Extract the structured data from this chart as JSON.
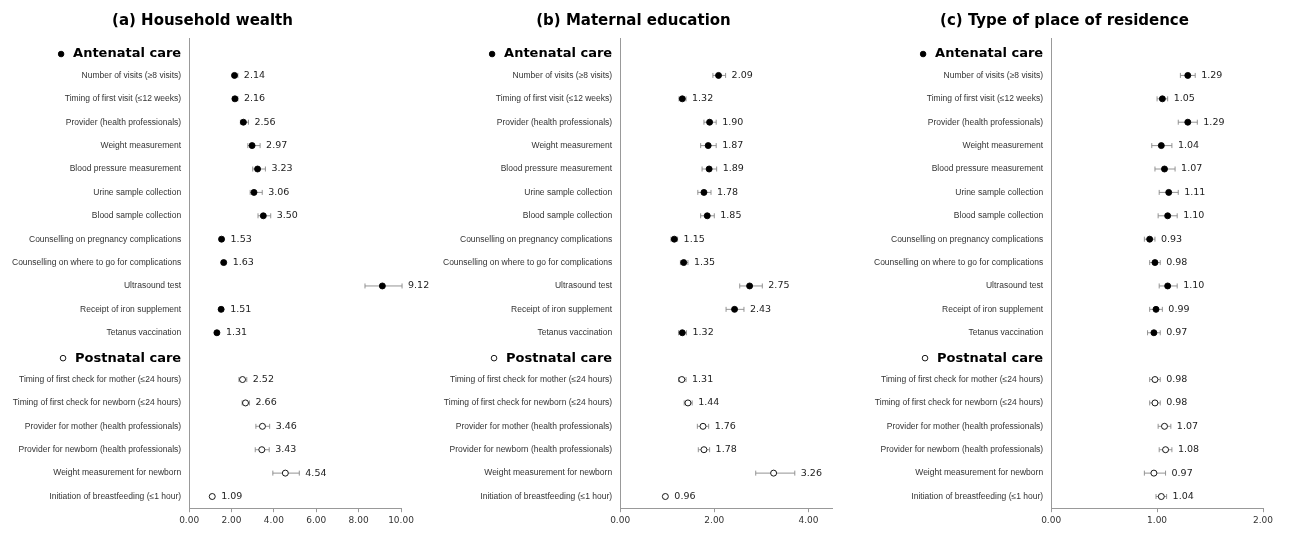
{
  "chart_data": [
    {
      "type": "scatter",
      "orientation": "horizontal",
      "title": "(a) Household wealth",
      "marker": "circle",
      "legend": "left",
      "categories": [
        null,
        "Number of visits (≥8 visits)",
        "Timing of first visit (≤12 weeks)",
        "Provider (health professionals)",
        "Weight measurement",
        "Blood pressure measurement",
        "Urine sample collection",
        "Blood sample collection",
        "Counselling on pregnancy complications",
        "Counselling on where to go for complications",
        "Ultrasound test",
        "Receipt of iron supplement",
        "Tetanus vaccination",
        null,
        "Timing of first check for mother (≤24 hours)",
        "Timing of first check for newborn (≤24 hours)",
        "Provider for mother (health professionals)",
        "Provider for newborn (health professionals)",
        "Weight measurement for newborn",
        "Initiation of breastfeeding (≤1 hour)"
      ],
      "xlim": [
        0,
        10
      ],
      "xticks": [
        {
          "value": 0,
          "label": "0.00"
        },
        {
          "value": 2,
          "label": "2.00"
        },
        {
          "value": 4,
          "label": "4.00"
        },
        {
          "value": 6,
          "label": "6.00"
        },
        {
          "value": 8,
          "label": "8.00"
        },
        {
          "value": 10,
          "label": "10.00"
        }
      ],
      "series": [
        {
          "name": "Antenatal care",
          "color": "#000000",
          "values": [
            null,
            2.14,
            2.16,
            2.56,
            2.97,
            3.23,
            3.06,
            3.5,
            1.53,
            1.63,
            9.12,
            1.51,
            1.31,
            null,
            null,
            null,
            null,
            null,
            null,
            null
          ],
          "errors": [
            null,
            [
              2.05,
              2.3
            ],
            [
              2.06,
              2.3
            ],
            [
              2.42,
              2.8
            ],
            [
              2.77,
              3.35
            ],
            [
              3.0,
              3.6
            ],
            [
              2.88,
              3.45
            ],
            [
              3.25,
              3.85
            ],
            [
              1.45,
              1.62
            ],
            [
              1.53,
              1.73
            ],
            [
              8.3,
              10.05
            ],
            [
              1.43,
              1.6
            ],
            [
              1.24,
              1.39
            ],
            null,
            null,
            null,
            null,
            null,
            null,
            null
          ],
          "value_labels": [
            null,
            "2.14",
            "2.16",
            "2.56",
            "2.97",
            "3.23",
            "3.06",
            "3.50",
            "1.53",
            "1.63",
            "9.12",
            "1.51",
            "1.31",
            null,
            null,
            null,
            null,
            null,
            null,
            null
          ]
        },
        {
          "name": "Postnatal care",
          "color": "#000000",
          "values": [
            null,
            null,
            null,
            null,
            null,
            null,
            null,
            null,
            null,
            null,
            null,
            null,
            null,
            null,
            2.52,
            2.66,
            3.46,
            3.43,
            4.54,
            1.09
          ],
          "errors": [
            null,
            null,
            null,
            null,
            null,
            null,
            null,
            null,
            null,
            null,
            null,
            null,
            null,
            null,
            [
              2.35,
              2.72
            ],
            [
              2.5,
              2.85
            ],
            [
              3.15,
              3.8
            ],
            [
              3.12,
              3.78
            ],
            [
              3.95,
              5.2
            ],
            null
          ],
          "value_labels": [
            null,
            null,
            null,
            null,
            null,
            null,
            null,
            null,
            null,
            null,
            null,
            null,
            null,
            null,
            "2.52",
            "2.66",
            "3.46",
            "3.43",
            "4.54",
            "1.09"
          ]
        }
      ]
    },
    {
      "type": "scatter",
      "orientation": "horizontal",
      "title": "(b) Maternal education",
      "marker": "circle",
      "legend": "left",
      "categories": [
        null,
        "Number of visits (≥8 visits)",
        "Timing of first visit (≤12 weeks)",
        "Provider (health professionals)",
        "Weight measurement",
        "Blood pressure measurement",
        "Urine sample collection",
        "Blood sample collection",
        "Counselling on pregnancy complications",
        "Counselling on where to go for complications",
        "Ultrasound test",
        "Receipt of iron supplement",
        "Tetanus vaccination",
        null,
        "Timing of first check for mother (≤24 hours)",
        "Timing of first check for newborn (≤24 hours)",
        "Provider for mother (health professionals)",
        "Provider for newborn (health professionals)",
        "Weight measurement for newborn",
        "Initiation of breastfeeding (≤1 hour)"
      ],
      "xlim": [
        0,
        4.5
      ],
      "xticks": [
        {
          "value": 0,
          "label": "0.00"
        },
        {
          "value": 2,
          "label": "2.00"
        },
        {
          "value": 4,
          "label": "4.00"
        }
      ],
      "series": [
        {
          "name": "Antenatal care",
          "color": "#000000",
          "values": [
            null,
            2.09,
            1.32,
            1.9,
            1.87,
            1.89,
            1.78,
            1.85,
            1.15,
            1.35,
            2.75,
            2.43,
            1.32,
            null,
            null,
            null,
            null,
            null,
            null,
            null
          ],
          "errors": [
            null,
            [
              1.97,
              2.24
            ],
            [
              1.25,
              1.4
            ],
            [
              1.78,
              2.04
            ],
            [
              1.71,
              2.04
            ],
            [
              1.74,
              2.05
            ],
            [
              1.65,
              1.93
            ],
            [
              1.71,
              2.0
            ],
            [
              1.08,
              1.22
            ],
            [
              1.28,
              1.44
            ],
            [
              2.54,
              3.02
            ],
            [
              2.25,
              2.63
            ],
            [
              1.24,
              1.41
            ],
            null,
            null,
            null,
            null,
            null,
            null,
            null
          ],
          "value_labels": [
            null,
            "2.09",
            "1.32",
            "1.90",
            "1.87",
            "1.89",
            "1.78",
            "1.85",
            "1.15",
            "1.35",
            "2.75",
            "2.43",
            "1.32",
            null,
            null,
            null,
            null,
            null,
            null,
            null
          ]
        },
        {
          "name": "Postnatal care",
          "color": "#000000",
          "values": [
            null,
            null,
            null,
            null,
            null,
            null,
            null,
            null,
            null,
            null,
            null,
            null,
            null,
            null,
            1.31,
            1.44,
            1.76,
            1.78,
            3.26,
            0.96
          ],
          "errors": [
            null,
            null,
            null,
            null,
            null,
            null,
            null,
            null,
            null,
            null,
            null,
            null,
            null,
            null,
            [
              1.24,
              1.4
            ],
            [
              1.36,
              1.53
            ],
            [
              1.64,
              1.88
            ],
            [
              1.66,
              1.9
            ],
            [
              2.88,
              3.71
            ],
            null
          ],
          "value_labels": [
            null,
            null,
            null,
            null,
            null,
            null,
            null,
            null,
            null,
            null,
            null,
            null,
            null,
            null,
            "1.31",
            "1.44",
            "1.76",
            "1.78",
            "3.26",
            "0.96"
          ]
        }
      ]
    },
    {
      "type": "scatter",
      "orientation": "horizontal",
      "title": "(c) Type of place of residence",
      "marker": "circle",
      "legend": "left",
      "categories": [
        null,
        "Number of visits (≥8 visits)",
        "Timing of first visit (≤12 weeks)",
        "Provider (health professionals)",
        "Weight measurement",
        "Blood pressure measurement",
        "Urine sample collection",
        "Blood sample collection",
        "Counselling on pregnancy complications",
        "Counselling on where to go for complications",
        "Ultrasound test",
        "Receipt of iron supplement",
        "Tetanus vaccination",
        null,
        "Timing of first check for mother (≤24 hours)",
        "Timing of first check for newborn (≤24 hours)",
        "Provider for mother (health professionals)",
        "Provider for newborn (health professionals)",
        "Weight measurement for newborn",
        "Initiation of breastfeeding (≤1 hour)"
      ],
      "xlim": [
        0,
        2
      ],
      "xticks": [
        {
          "value": 0,
          "label": "0.00"
        },
        {
          "value": 1,
          "label": "1.00"
        },
        {
          "value": 2,
          "label": "2.00"
        }
      ],
      "series": [
        {
          "name": "Antenatal care",
          "color": "#000000",
          "values": [
            null,
            1.29,
            1.05,
            1.29,
            1.04,
            1.07,
            1.11,
            1.1,
            0.93,
            0.98,
            1.1,
            0.99,
            0.97,
            null,
            null,
            null,
            null,
            null,
            null,
            null
          ],
          "errors": [
            null,
            [
              1.22,
              1.36
            ],
            [
              1.0,
              1.1
            ],
            [
              1.2,
              1.38
            ],
            [
              0.95,
              1.14
            ],
            [
              0.98,
              1.17
            ],
            [
              1.02,
              1.2
            ],
            [
              1.01,
              1.19
            ],
            [
              0.88,
              0.98
            ],
            [
              0.93,
              1.03
            ],
            [
              1.02,
              1.19
            ],
            [
              0.93,
              1.05
            ],
            [
              0.91,
              1.03
            ],
            null,
            null,
            null,
            null,
            null,
            null,
            null
          ],
          "value_labels": [
            null,
            "1.29",
            "1.05",
            "1.29",
            "1.04",
            "1.07",
            "1.11",
            "1.10",
            "0.93",
            "0.98",
            "1.10",
            "0.99",
            "0.97",
            null,
            null,
            null,
            null,
            null,
            null,
            null
          ]
        },
        {
          "name": "Postnatal care",
          "color": "#000000",
          "values": [
            null,
            null,
            null,
            null,
            null,
            null,
            null,
            null,
            null,
            null,
            null,
            null,
            null,
            null,
            0.98,
            0.98,
            1.07,
            1.08,
            0.97,
            1.04
          ],
          "errors": [
            null,
            null,
            null,
            null,
            null,
            null,
            null,
            null,
            null,
            null,
            null,
            null,
            null,
            null,
            [
              0.93,
              1.03
            ],
            [
              0.93,
              1.03
            ],
            [
              1.01,
              1.13
            ],
            [
              1.02,
              1.14
            ],
            [
              0.88,
              1.08
            ],
            [
              0.99,
              1.09
            ]
          ],
          "value_labels": [
            null,
            null,
            null,
            null,
            null,
            null,
            null,
            null,
            null,
            null,
            null,
            null,
            null,
            null,
            "0.98",
            "0.98",
            "1.07",
            "1.08",
            "0.97",
            "1.04"
          ]
        }
      ]
    }
  ]
}
